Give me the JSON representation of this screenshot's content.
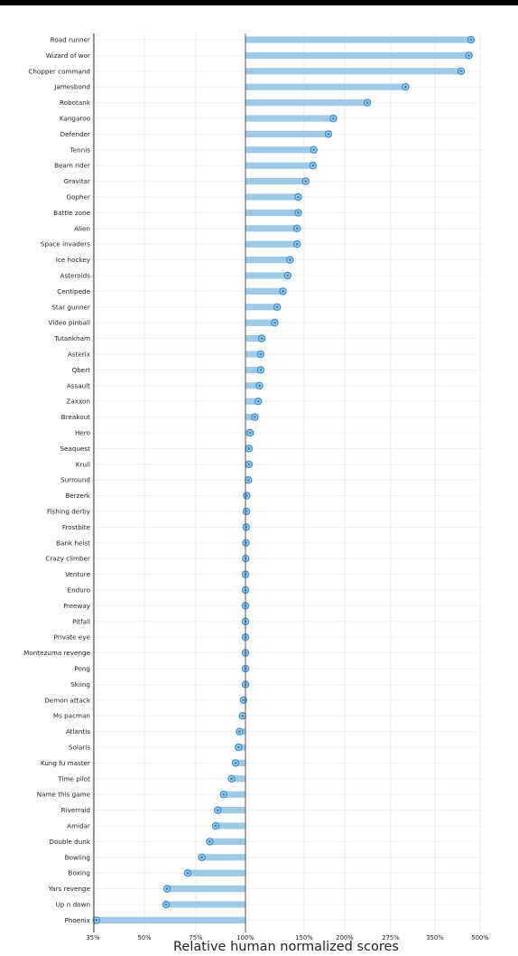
{
  "chart_data": {
    "type": "bar",
    "orientation": "horizontal",
    "xlabel": "Relative human normalized scores",
    "xscale": "custom-nonlinear",
    "baseline": "100%",
    "xlim": [
      "35%",
      "500%"
    ],
    "xticks": [
      "35%",
      "50%",
      "75%",
      "100%",
      "150%",
      "200%",
      "275%",
      "350%",
      "500%"
    ],
    "grid": true,
    "bar_color": "#9ecae8",
    "marker_color": "#3a89c6",
    "categories": [
      "Road runner",
      "Wizard of wor",
      "Chopper command",
      "Jamesbond",
      "Robotank",
      "Kangaroo",
      "Defender",
      "Tennis",
      "Beam rider",
      "Gravitar",
      "Gopher",
      "Battle zone",
      "Alien",
      "Space invaders",
      "Ice hockey",
      "Asteroids",
      "Centipede",
      "Star gunner",
      "Video pinball",
      "Tutankham",
      "Asterix",
      "Qbert",
      "Assault",
      "Zaxxon",
      "Breakout",
      "Hero",
      "Seaquest",
      "Krull",
      "Surround",
      "Berzerk",
      "Fishing derby",
      "Frostbite",
      "Bank heist",
      "Crazy climber",
      "Venture",
      "Enduro",
      "Freeway",
      "Pitfall",
      "Private eye",
      "Montezuma revenge",
      "Pong",
      "Skiing",
      "Demon attack",
      "Ms pacman",
      "Atlantis",
      "Solaris",
      "Kung fu master",
      "Time pilot",
      "Name this game",
      "Riverraid",
      "Amidar",
      "Double dunk",
      "Bowling",
      "Boxing",
      "Yars revenge",
      "Up n down",
      "Phoenix"
    ],
    "values": [
      470,
      463,
      437,
      300,
      237,
      186,
      180,
      162,
      161,
      152,
      145,
      145,
      144,
      144,
      138,
      136,
      132,
      127,
      125,
      114,
      113,
      113,
      112,
      111,
      108,
      104,
      103,
      103,
      102.5,
      101,
      100.8,
      100.6,
      100.4,
      100.2,
      100,
      100,
      100,
      100,
      100,
      100,
      100,
      100,
      99,
      98.5,
      97,
      96.5,
      95,
      93,
      89,
      86,
      85,
      82,
      78,
      71,
      61,
      60.5,
      36
    ]
  }
}
